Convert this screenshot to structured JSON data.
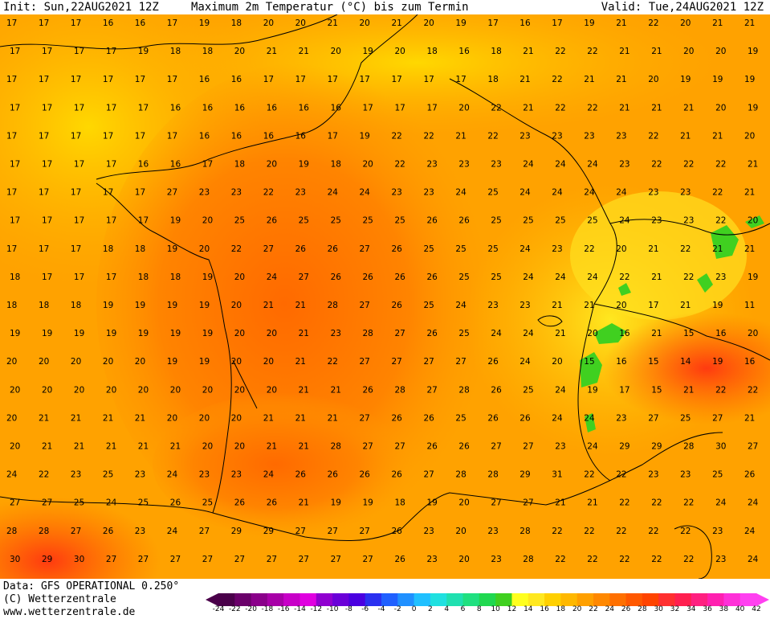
{
  "header": {
    "init": "Init: Sun,22AUG2021 12Z",
    "title": "Maximum 2m Temperatur (°C) bis zum Termin",
    "valid": "Valid: Tue,24AUG2021 12Z"
  },
  "footer": {
    "data_source": "Data: GFS OPERATIONAL 0.250°",
    "copyright": "(C) Wetterzentrale",
    "website": "www.wetterzentrale.de"
  },
  "legend": {
    "ticks": [
      "-24",
      "-22",
      "-20",
      "-18",
      "-16",
      "-14",
      "-12",
      "-10",
      "-8",
      "-6",
      "-4",
      "-2",
      "0",
      "2",
      "4",
      "6",
      "8",
      "10",
      "12",
      "14",
      "16",
      "18",
      "20",
      "22",
      "24",
      "26",
      "28",
      "30",
      "32",
      "34",
      "36",
      "38",
      "40",
      "42"
    ],
    "colors": [
      "#4a004a",
      "#6a006a",
      "#8a008a",
      "#a800a8",
      "#c800c8",
      "#e000e0",
      "#9000d0",
      "#6a00d8",
      "#4a00e0",
      "#2a30f0",
      "#2060ff",
      "#2090ff",
      "#20c0ff",
      "#20e0e0",
      "#20e0b0",
      "#20e080",
      "#20d850",
      "#40d020",
      "#ffff20",
      "#ffe820",
      "#ffd000",
      "#ffb800",
      "#ffa000",
      "#ff8800",
      "#ff7000",
      "#ff5800",
      "#ff4400",
      "#ff3030",
      "#ff2050",
      "#ff2080",
      "#ff20b0",
      "#ff30d8",
      "#ff40f0"
    ]
  },
  "map_values": [
    [
      "17",
      "17",
      "17",
      "16",
      "16",
      "17",
      "19",
      "18",
      "20",
      "20",
      "21",
      "20",
      "21",
      "20",
      "19",
      "17",
      "16",
      "17",
      "19",
      "21",
      "22",
      "20",
      "21",
      "21"
    ],
    [
      "17",
      "17",
      "17",
      "17",
      "19",
      "18",
      "18",
      "20",
      "21",
      "21",
      "20",
      "19",
      "20",
      "18",
      "16",
      "18",
      "21",
      "22",
      "22",
      "21",
      "21",
      "20",
      "20",
      "19"
    ],
    [
      "17",
      "17",
      "17",
      "17",
      "17",
      "17",
      "16",
      "16",
      "17",
      "17",
      "17",
      "17",
      "17",
      "17",
      "17",
      "18",
      "21",
      "22",
      "21",
      "21",
      "20",
      "19",
      "19",
      "19"
    ],
    [
      "17",
      "17",
      "17",
      "17",
      "17",
      "16",
      "16",
      "16",
      "16",
      "16",
      "16",
      "17",
      "17",
      "17",
      "20",
      "22",
      "21",
      "22",
      "22",
      "21",
      "21",
      "21",
      "20",
      "19"
    ],
    [
      "17",
      "17",
      "17",
      "17",
      "17",
      "17",
      "16",
      "16",
      "16",
      "16",
      "17",
      "19",
      "22",
      "22",
      "21",
      "22",
      "23",
      "23",
      "23",
      "23",
      "22",
      "21",
      "21",
      "20"
    ],
    [
      "17",
      "17",
      "17",
      "17",
      "16",
      "16",
      "17",
      "18",
      "20",
      "19",
      "18",
      "20",
      "22",
      "23",
      "23",
      "23",
      "24",
      "24",
      "24",
      "23",
      "22",
      "22",
      "22",
      "21"
    ],
    [
      "17",
      "17",
      "17",
      "17",
      "17",
      "27",
      "23",
      "23",
      "22",
      "23",
      "24",
      "24",
      "23",
      "23",
      "24",
      "25",
      "24",
      "24",
      "24",
      "24",
      "23",
      "23",
      "22",
      "21"
    ],
    [
      "17",
      "17",
      "17",
      "17",
      "17",
      "19",
      "20",
      "25",
      "26",
      "25",
      "25",
      "25",
      "25",
      "26",
      "26",
      "25",
      "25",
      "25",
      "25",
      "24",
      "23",
      "23",
      "22",
      "20"
    ],
    [
      "17",
      "17",
      "17",
      "18",
      "18",
      "19",
      "20",
      "22",
      "27",
      "26",
      "26",
      "27",
      "26",
      "25",
      "25",
      "25",
      "24",
      "23",
      "22",
      "20",
      "21",
      "22",
      "21",
      "21"
    ],
    [
      "18",
      "17",
      "17",
      "17",
      "18",
      "18",
      "19",
      "20",
      "24",
      "27",
      "26",
      "26",
      "26",
      "26",
      "25",
      "25",
      "24",
      "24",
      "24",
      "22",
      "21",
      "22",
      "23",
      "19"
    ],
    [
      "18",
      "18",
      "18",
      "19",
      "19",
      "19",
      "19",
      "20",
      "21",
      "21",
      "28",
      "27",
      "26",
      "25",
      "24",
      "23",
      "23",
      "21",
      "21",
      "20",
      "17",
      "21",
      "19",
      "11"
    ],
    [
      "19",
      "19",
      "19",
      "19",
      "19",
      "19",
      "19",
      "20",
      "20",
      "21",
      "23",
      "28",
      "27",
      "26",
      "25",
      "24",
      "24",
      "21",
      "20",
      "16",
      "21",
      "15",
      "16",
      "20"
    ],
    [
      "20",
      "20",
      "20",
      "20",
      "20",
      "19",
      "19",
      "20",
      "20",
      "21",
      "22",
      "27",
      "27",
      "27",
      "27",
      "26",
      "24",
      "20",
      "15",
      "16",
      "15",
      "14",
      "19",
      "16"
    ],
    [
      "20",
      "20",
      "20",
      "20",
      "20",
      "20",
      "20",
      "20",
      "20",
      "21",
      "21",
      "26",
      "28",
      "27",
      "28",
      "26",
      "25",
      "24",
      "19",
      "17",
      "15",
      "21",
      "22",
      "22"
    ],
    [
      "20",
      "21",
      "21",
      "21",
      "21",
      "20",
      "20",
      "20",
      "21",
      "21",
      "21",
      "27",
      "26",
      "26",
      "25",
      "26",
      "26",
      "24",
      "24",
      "23",
      "27",
      "25",
      "27",
      "21"
    ],
    [
      "20",
      "21",
      "21",
      "21",
      "21",
      "21",
      "20",
      "20",
      "21",
      "21",
      "28",
      "27",
      "27",
      "26",
      "26",
      "27",
      "27",
      "23",
      "24",
      "29",
      "29",
      "28",
      "30",
      "27"
    ],
    [
      "24",
      "22",
      "23",
      "25",
      "23",
      "24",
      "23",
      "23",
      "24",
      "26",
      "26",
      "26",
      "26",
      "27",
      "28",
      "28",
      "29",
      "31",
      "22",
      "22",
      "23",
      "23",
      "25",
      "26"
    ],
    [
      "27",
      "27",
      "25",
      "24",
      "25",
      "26",
      "25",
      "26",
      "26",
      "21",
      "19",
      "19",
      "18",
      "19",
      "20",
      "27",
      "27",
      "21",
      "21",
      "22",
      "22",
      "22",
      "24",
      "24"
    ],
    [
      "28",
      "28",
      "27",
      "26",
      "23",
      "24",
      "27",
      "29",
      "29",
      "27",
      "27",
      "27",
      "26",
      "23",
      "20",
      "23",
      "28",
      "22",
      "22",
      "22",
      "22",
      "22",
      "23",
      "24"
    ],
    [
      "30",
      "29",
      "30",
      "27",
      "27",
      "27",
      "27",
      "27",
      "27",
      "27",
      "27",
      "27",
      "26",
      "23",
      "20",
      "23",
      "28",
      "22",
      "22",
      "22",
      "22",
      "22",
      "23",
      "24"
    ]
  ]
}
